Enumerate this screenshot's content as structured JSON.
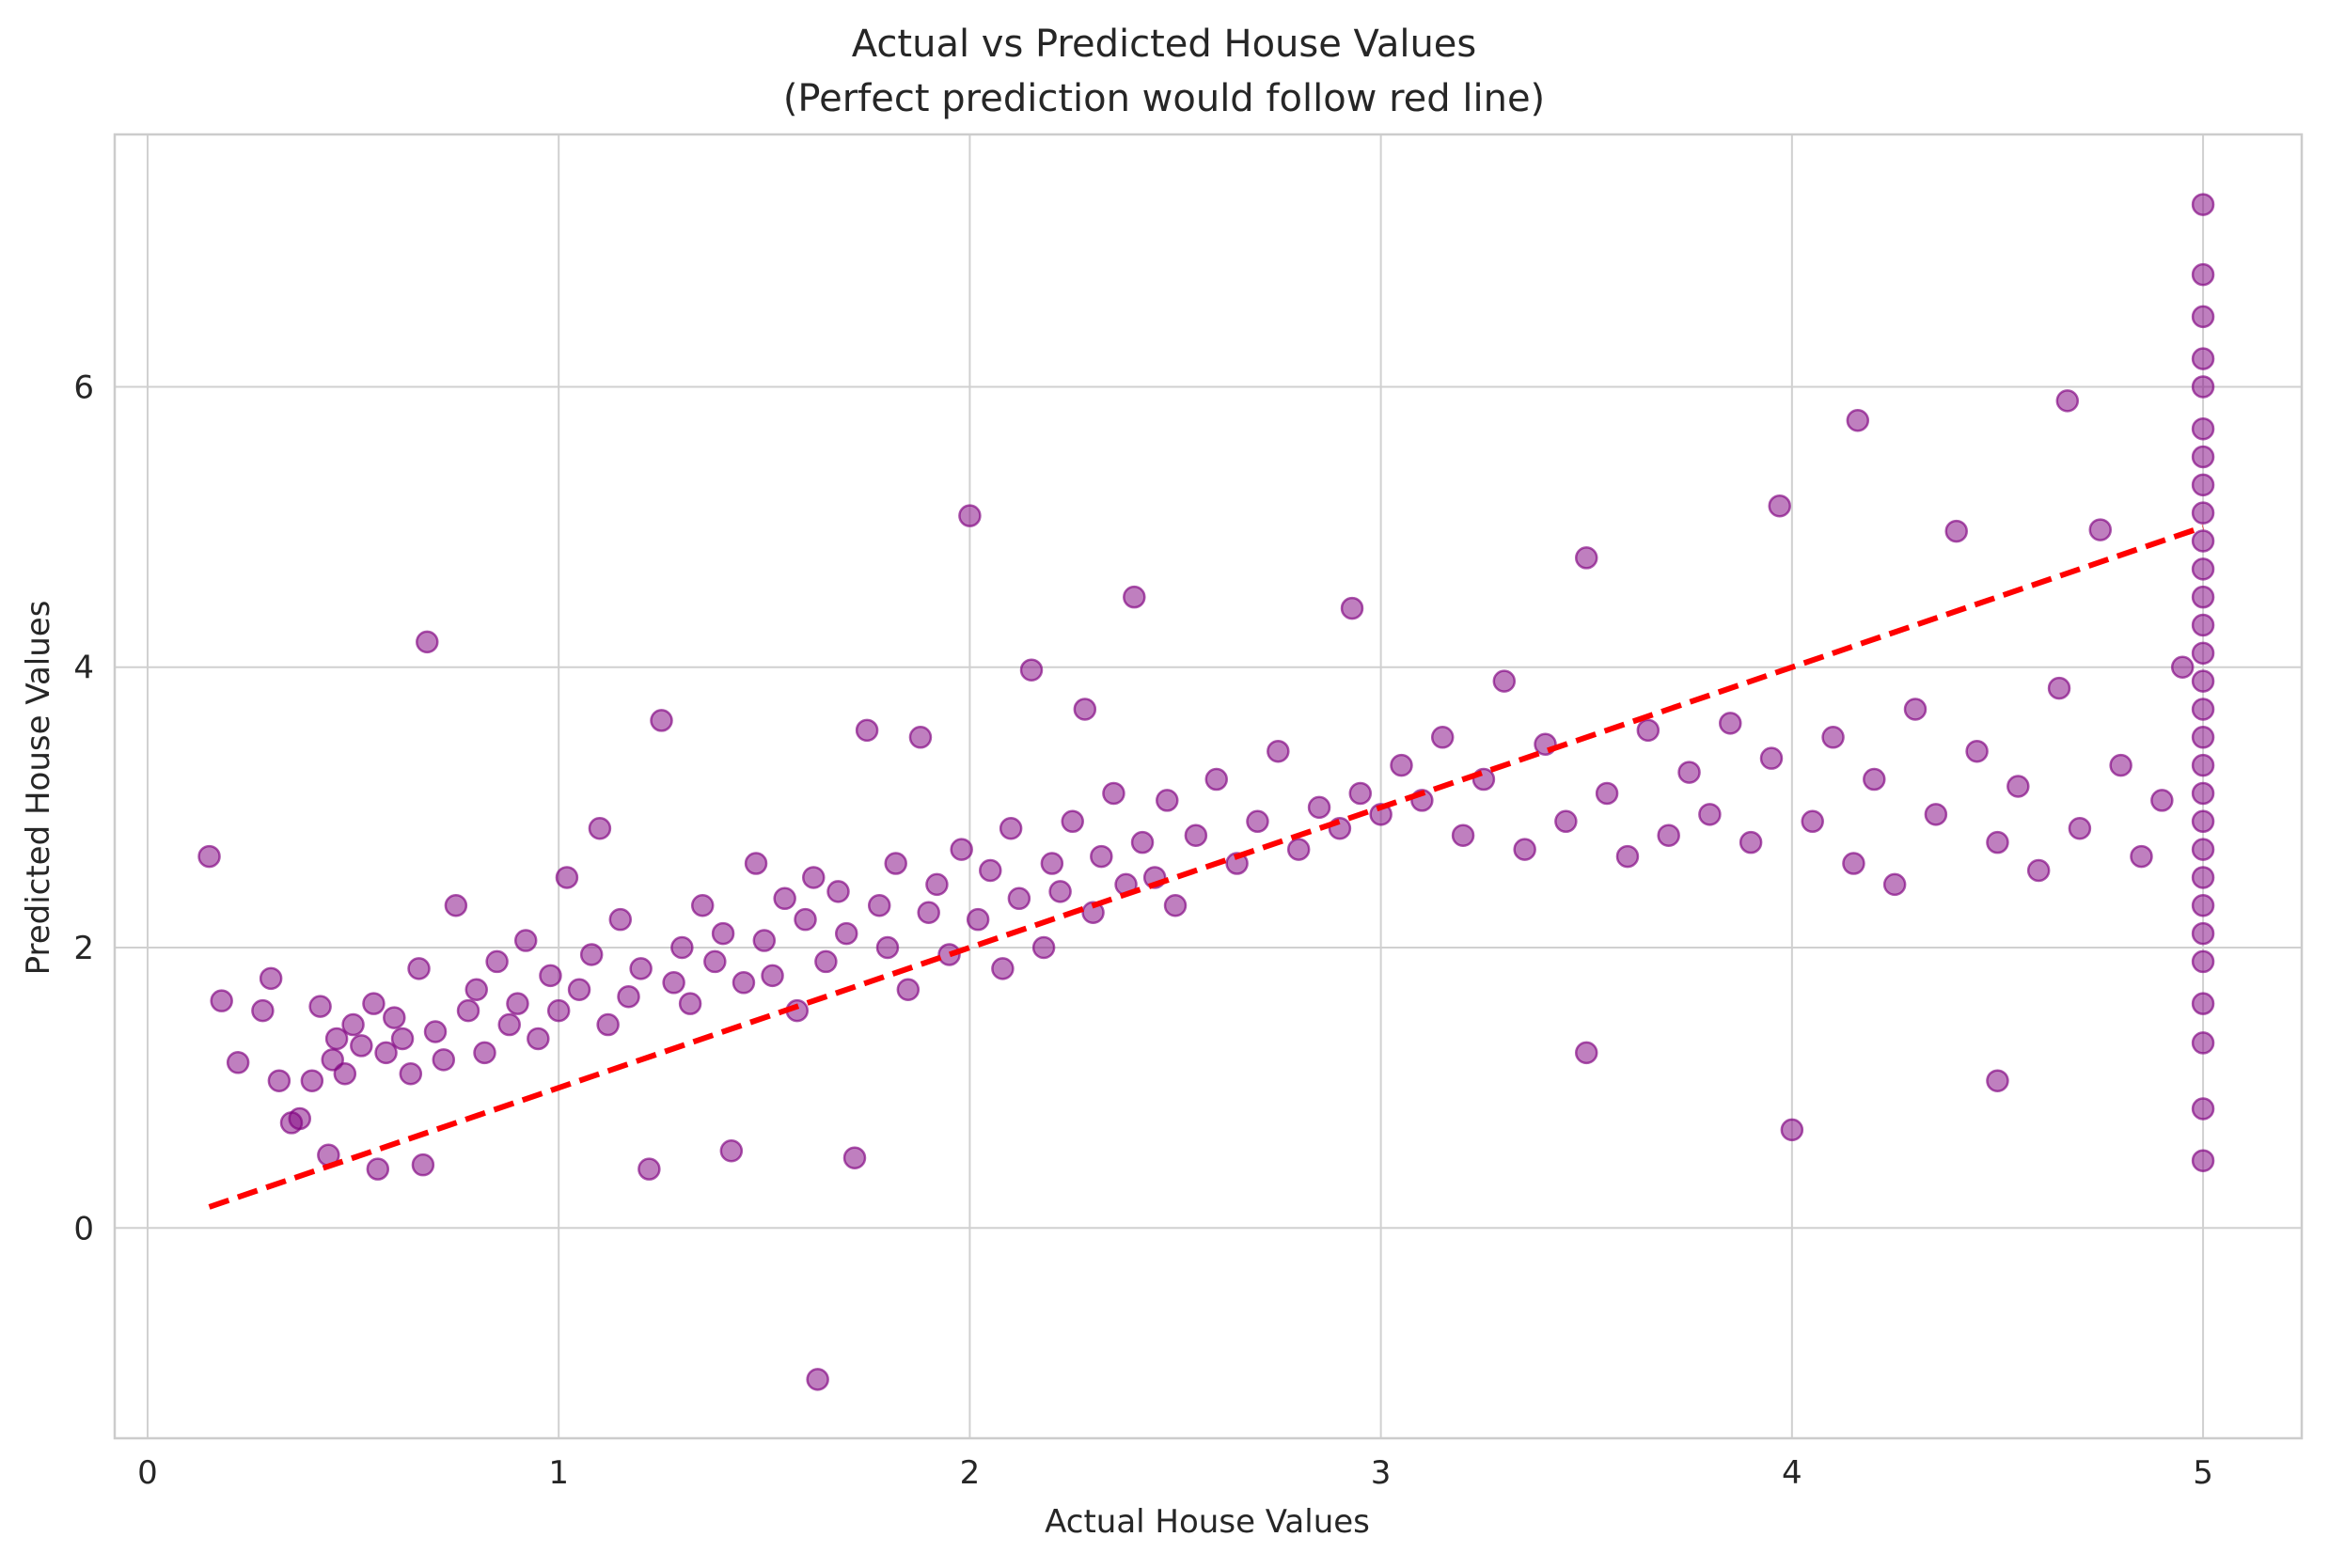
{
  "chart_data": {
    "type": "scatter",
    "title": "Actual vs Predicted House Values",
    "subtitle": "(Perfect prediction would follow red line)",
    "xlabel": "Actual House Values",
    "ylabel": "Predicted House Values",
    "xlim": [
      -0.08,
      5.24
    ],
    "ylim": [
      -1.5,
      7.8
    ],
    "xticks": [
      0,
      1,
      2,
      3,
      4,
      5
    ],
    "yticks": [
      0,
      2,
      4,
      6
    ],
    "grid": true,
    "point_color": "#800080",
    "point_alpha": 0.5,
    "reference_line": {
      "x": [
        0.15,
        5.0
      ],
      "y": [
        0.15,
        5.0
      ],
      "color": "#ff0000",
      "style": "dashed"
    },
    "series": [
      {
        "x": [
          0.15,
          0.18,
          0.22,
          0.28,
          0.3,
          0.32,
          0.35,
          0.37,
          0.4,
          0.42,
          0.44,
          0.45,
          0.46,
          0.48,
          0.5,
          0.52,
          0.55,
          0.56,
          0.58,
          0.6,
          0.62,
          0.64,
          0.66,
          0.67,
          0.68,
          0.7,
          0.72,
          0.75,
          0.78,
          0.8,
          0.82,
          0.85,
          0.88,
          0.9,
          0.92,
          0.95,
          0.98,
          1.0,
          1.02,
          1.05,
          1.08,
          1.1,
          1.12,
          1.15,
          1.17,
          1.2,
          1.22,
          1.25,
          1.28,
          1.3,
          1.32,
          1.35,
          1.38,
          1.4,
          1.42,
          1.45,
          1.48,
          1.5,
          1.52,
          1.55,
          1.58,
          1.6,
          1.62,
          1.63,
          1.65,
          1.68,
          1.7,
          1.72,
          1.75,
          1.78,
          1.8,
          1.82,
          1.85,
          1.88,
          1.9,
          1.92,
          1.95,
          1.98,
          2.0,
          2.02,
          2.05,
          2.08,
          2.1,
          2.12,
          2.15,
          2.18,
          2.2,
          2.22,
          2.25,
          2.28,
          2.3,
          2.32,
          2.35,
          2.38,
          2.4,
          2.42,
          2.45,
          2.48,
          2.5,
          2.55,
          2.6,
          2.65,
          2.7,
          2.75,
          2.8,
          2.85,
          2.9,
          2.93,
          2.95,
          3.0,
          3.05,
          3.1,
          3.15,
          3.2,
          3.25,
          3.3,
          3.35,
          3.4,
          3.45,
          3.5,
          3.5,
          3.55,
          3.6,
          3.65,
          3.7,
          3.75,
          3.8,
          3.85,
          3.9,
          3.95,
          3.97,
          4.0,
          4.05,
          4.1,
          4.15,
          4.16,
          4.2,
          4.25,
          4.3,
          4.35,
          4.4,
          4.45,
          4.5,
          4.5,
          4.55,
          4.6,
          4.65,
          4.67,
          4.7,
          4.75,
          4.8,
          4.85,
          4.9,
          4.95,
          5.0,
          5.0,
          5.0,
          5.0,
          5.0,
          5.0,
          5.0,
          5.0,
          5.0,
          5.0,
          5.0,
          5.0,
          5.0,
          5.0,
          5.0,
          5.0,
          5.0,
          5.0,
          5.0,
          5.0,
          5.0,
          5.0,
          5.0,
          5.0,
          5.0,
          5.0,
          5.0,
          5.0,
          5.0
        ],
        "y": [
          2.65,
          1.62,
          1.18,
          1.55,
          1.78,
          1.05,
          0.75,
          0.78,
          1.05,
          1.58,
          0.52,
          1.2,
          1.35,
          1.1,
          1.45,
          1.3,
          1.6,
          0.42,
          1.25,
          1.5,
          1.35,
          1.1,
          1.85,
          0.45,
          4.18,
          1.4,
          1.2,
          2.3,
          1.55,
          1.7,
          1.25,
          1.9,
          1.45,
          1.6,
          2.05,
          1.35,
          1.8,
          1.55,
          2.5,
          1.7,
          1.95,
          2.85,
          1.45,
          2.2,
          1.65,
          1.85,
          0.42,
          3.62,
          1.75,
          2.0,
          1.6,
          2.3,
          1.9,
          2.1,
          0.55,
          1.75,
          2.6,
          2.05,
          1.8,
          2.35,
          1.55,
          2.2,
          2.5,
          -1.08,
          1.9,
          2.4,
          2.1,
          0.5,
          3.55,
          2.3,
          2.0,
          2.6,
          1.7,
          3.5,
          2.25,
          2.45,
          1.95,
          2.7,
          5.08,
          2.2,
          2.55,
          1.85,
          2.85,
          2.35,
          3.98,
          2.0,
          2.6,
          2.4,
          2.9,
          3.7,
          2.25,
          2.65,
          3.1,
          2.45,
          4.5,
          2.75,
          2.5,
          3.05,
          2.3,
          2.8,
          3.2,
          2.6,
          2.9,
          3.4,
          2.7,
          3.0,
          2.85,
          4.42,
          3.1,
          2.95,
          3.3,
          3.05,
          3.5,
          2.8,
          3.2,
          3.9,
          2.7,
          3.45,
          2.9,
          4.78,
          1.25,
          3.1,
          2.65,
          3.55,
          2.8,
          3.25,
          2.95,
          3.6,
          2.75,
          3.35,
          5.15,
          0.7,
          2.9,
          3.5,
          2.6,
          5.76,
          3.2,
          2.45,
          3.7,
          2.95,
          4.97,
          3.4,
          1.05,
          2.75,
          3.15,
          2.55,
          3.85,
          5.9,
          2.85,
          4.98,
          3.3,
          2.65,
          3.05,
          4.0,
          0.48,
          0.85,
          1.32,
          1.6,
          1.9,
          2.1,
          2.3,
          2.5,
          2.7,
          2.9,
          3.1,
          3.3,
          3.5,
          3.7,
          3.9,
          4.1,
          4.3,
          4.5,
          4.7,
          4.9,
          5.1,
          5.3,
          5.5,
          5.7,
          6.0,
          6.2,
          6.5,
          6.8,
          7.3
        ]
      }
    ]
  }
}
